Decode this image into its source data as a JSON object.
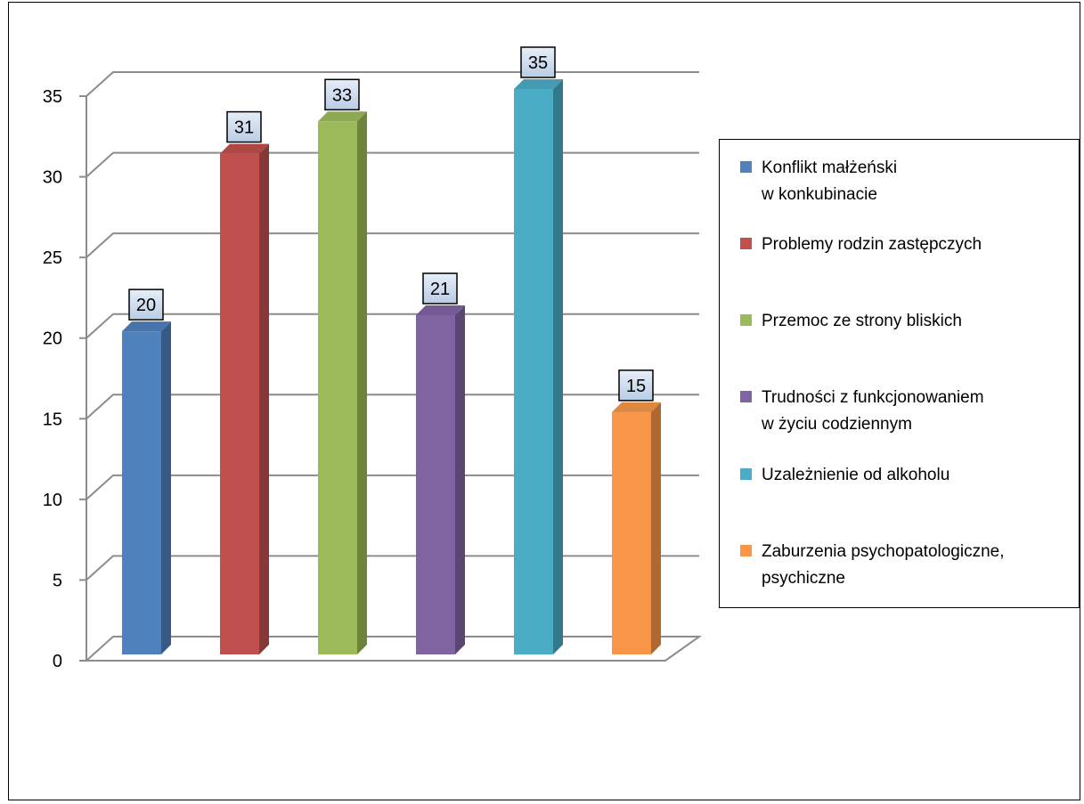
{
  "chart_data": {
    "type": "bar",
    "categories": [
      "Konflikt małżeński\nw konkubinacie",
      "Problemy rodzin zastępczych",
      "Przemoc ze strony bliskich",
      "Trudności z funkcjonowaniem\nw życiu codziennym",
      "Uzależnienie od alkoholu",
      "Zaburzenia psychopatologiczne,\npsychiczne"
    ],
    "values": [
      20,
      31,
      33,
      21,
      35,
      15
    ],
    "data_labels": [
      "20",
      "31",
      "33",
      "21",
      "35",
      "15"
    ],
    "colors": [
      "#4f81bd",
      "#c0504d",
      "#9bbb59",
      "#8064a2",
      "#4bacc6",
      "#f79646"
    ],
    "y_ticks": [
      "0",
      "5",
      "10",
      "15",
      "20",
      "25",
      "30",
      "35"
    ],
    "ylim": [
      0,
      35
    ],
    "grid": true,
    "style": "3d-column",
    "legend_position": "right",
    "title": "",
    "xlabel": "",
    "ylabel": ""
  }
}
